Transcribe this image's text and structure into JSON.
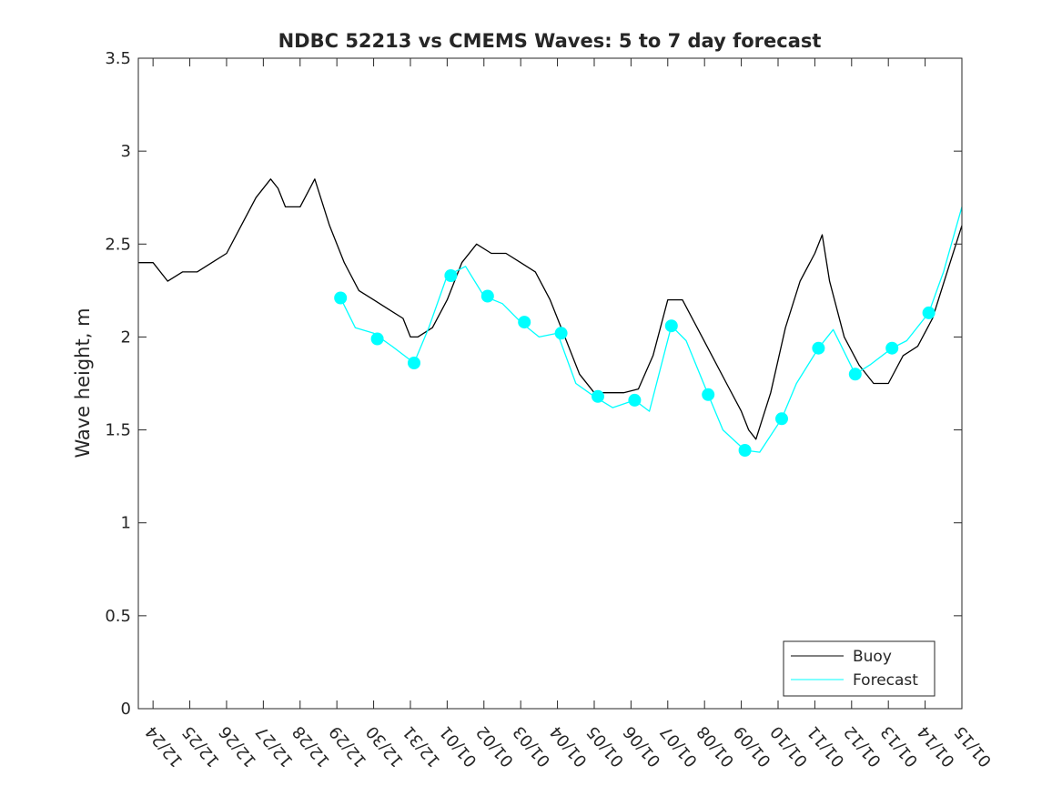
{
  "chart_data": {
    "type": "line",
    "title": "NDBC 52213 vs CMEMS Waves: 5 to 7 day forecast",
    "xlabel": "",
    "ylabel": "Wave height, m",
    "x_tick_labels": [
      "12/24",
      "12/25",
      "12/26",
      "12/27",
      "12/28",
      "12/29",
      "12/30",
      "12/31",
      "01/01",
      "01/02",
      "01/03",
      "01/04",
      "01/05",
      "01/06",
      "01/07",
      "01/08",
      "01/09",
      "01/10",
      "01/11",
      "01/12",
      "01/13",
      "01/14",
      "01/15"
    ],
    "y_tick_labels": [
      "0",
      "0.5",
      "1",
      "1.5",
      "2",
      "2.5",
      "3",
      "3.5"
    ],
    "xlim": [
      -0.4,
      22
    ],
    "ylim": [
      0,
      3.5
    ],
    "grid": false,
    "legend_position": "bottom-right",
    "colors": {
      "buoy": "#000000",
      "forecast": "#00FFFF",
      "axis": "#262626"
    },
    "series": [
      {
        "name": "Buoy",
        "color": "#000000",
        "x": [
          -0.4,
          0,
          0.4,
          0.8,
          1.2,
          1.6,
          2,
          2.4,
          2.8,
          3.2,
          3.4,
          3.6,
          4,
          4.4,
          4.8,
          5.2,
          5.6,
          6,
          6.4,
          6.8,
          7,
          7.2,
          7.6,
          8,
          8.4,
          8.8,
          9.2,
          9.6,
          10,
          10.4,
          10.8,
          11.2,
          11.6,
          12,
          12.4,
          12.8,
          13.2,
          13.6,
          14,
          14.4,
          14.8,
          15.2,
          15.6,
          16,
          16.2,
          16.4,
          16.8,
          17.2,
          17.6,
          18,
          18.2,
          18.4,
          18.8,
          19.2,
          19.6,
          20,
          20.4,
          20.8,
          21.2,
          21.6,
          22
        ],
        "y": [
          2.4,
          2.4,
          2.3,
          2.35,
          2.35,
          2.4,
          2.45,
          2.6,
          2.75,
          2.85,
          2.8,
          2.7,
          2.7,
          2.85,
          2.6,
          2.4,
          2.25,
          2.2,
          2.15,
          2.1,
          2.0,
          2.0,
          2.05,
          2.2,
          2.4,
          2.5,
          2.45,
          2.45,
          2.4,
          2.35,
          2.2,
          2.0,
          1.8,
          1.7,
          1.7,
          1.7,
          1.72,
          1.9,
          2.2,
          2.2,
          2.05,
          1.9,
          1.75,
          1.6,
          1.5,
          1.45,
          1.7,
          2.05,
          2.3,
          2.45,
          2.55,
          2.3,
          2.0,
          1.85,
          1.75,
          1.75,
          1.9,
          1.95,
          2.1,
          2.35,
          2.6
        ]
      },
      {
        "name": "Forecast",
        "color": "#00FFFF",
        "x": [
          5.1,
          5.5,
          6,
          6.5,
          7.1,
          7.5,
          8,
          8.5,
          9,
          9.5,
          10,
          10.5,
          11,
          11.5,
          12,
          12.5,
          13.1,
          13.5,
          14.1,
          14.5,
          15.1,
          15.5,
          16.1,
          16.5,
          17.1,
          17.5,
          18.1,
          18.5,
          19.1,
          19.5,
          20.1,
          20.5,
          21.1,
          21.5,
          22
        ],
        "y": [
          2.21,
          2.05,
          2.02,
          1.95,
          1.86,
          2.05,
          2.33,
          2.38,
          2.22,
          2.18,
          2.08,
          2.0,
          2.02,
          1.75,
          1.68,
          1.62,
          1.66,
          1.6,
          2.06,
          1.98,
          1.69,
          1.5,
          1.39,
          1.38,
          1.56,
          1.75,
          1.94,
          2.04,
          1.8,
          1.85,
          1.94,
          1.98,
          2.13,
          2.35,
          2.7
        ]
      }
    ],
    "forecast_markers": {
      "x": [
        5.1,
        6.1,
        7.1,
        8.1,
        9.1,
        10.1,
        11.1,
        12.1,
        13.1,
        14.1,
        15.1,
        16.1,
        17.1,
        18.1,
        19.1,
        20.1,
        21.1
      ],
      "y": [
        2.21,
        1.99,
        1.86,
        2.33,
        2.22,
        2.08,
        2.02,
        1.68,
        1.66,
        2.06,
        1.69,
        1.39,
        1.56,
        1.94,
        1.8,
        1.94,
        2.13
      ]
    }
  }
}
